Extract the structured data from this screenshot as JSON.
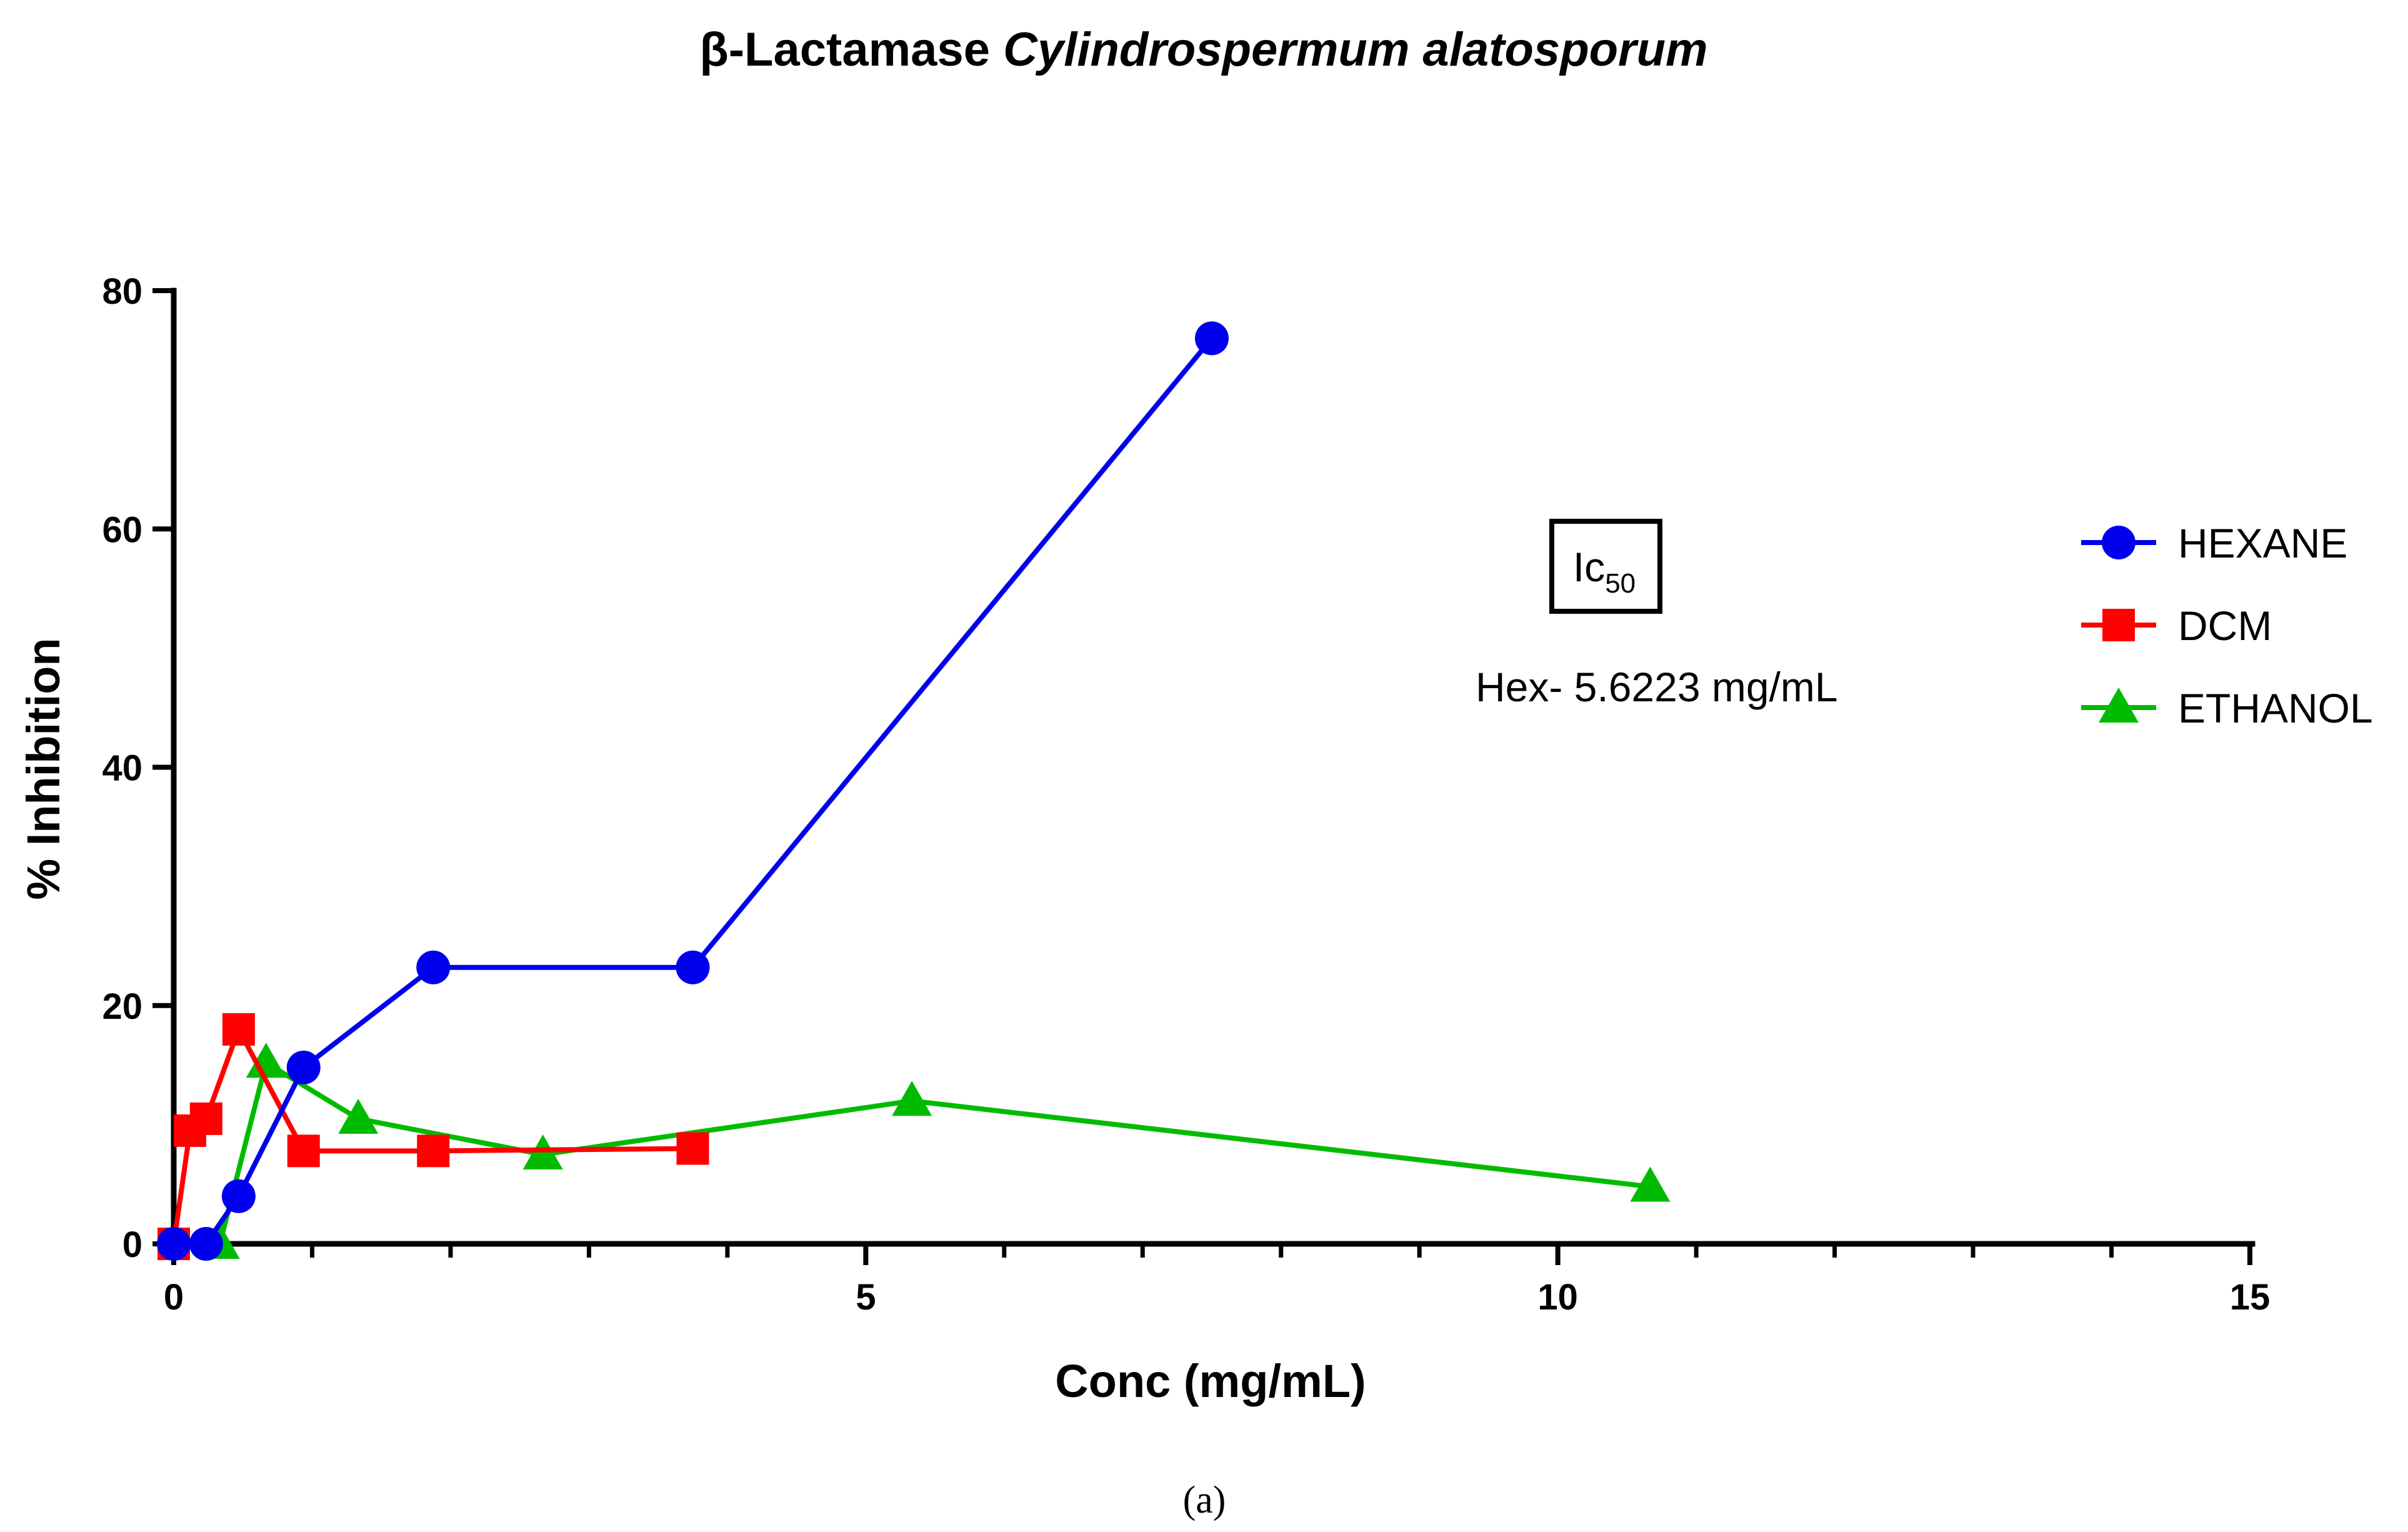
{
  "chart_data": {
    "type": "line",
    "title_prefix": "β-Lactamase ",
    "title_italic": "Cylindrospermum alatosporum",
    "xlabel": "Conc (mg/mL)",
    "ylabel": "% Inhibition",
    "xlim": [
      0,
      15
    ],
    "ylim": [
      0,
      80
    ],
    "x_major_ticks": [
      0,
      5,
      10,
      15
    ],
    "x_minor_ticks": [
      1,
      2,
      3,
      4,
      6,
      7,
      8,
      9,
      11,
      12,
      13,
      14
    ],
    "y_ticks": [
      0,
      20,
      40,
      60,
      80
    ],
    "grid": false,
    "legend_position": "right",
    "series": [
      {
        "name": "HEXANE",
        "color": "#0000ee",
        "marker": "circle",
        "x": [
          0,
          0.234,
          0.469,
          0.938,
          1.875,
          3.75,
          7.5
        ],
        "y": [
          0,
          0,
          4,
          14.8,
          23.2,
          23.2,
          76
        ]
      },
      {
        "name": "DCM",
        "color": "#ff0000",
        "marker": "square",
        "x": [
          0,
          0.117,
          0.234,
          0.469,
          0.938,
          1.875,
          3.75
        ],
        "y": [
          0,
          9.5,
          10.5,
          18,
          7.8,
          7.8,
          8
        ]
      },
      {
        "name": "ETHANOL",
        "color": "#00bb00",
        "marker": "triangle",
        "x": [
          0.333,
          0.667,
          1.333,
          2.667,
          5.333,
          10.667
        ],
        "y": [
          0,
          15.2,
          10.5,
          7.5,
          12,
          4.8
        ]
      }
    ],
    "annotation": {
      "box_main": "Ic",
      "box_sub": "50",
      "text": "Hex- 5.6223 mg/mL"
    },
    "caption": "(a)"
  }
}
